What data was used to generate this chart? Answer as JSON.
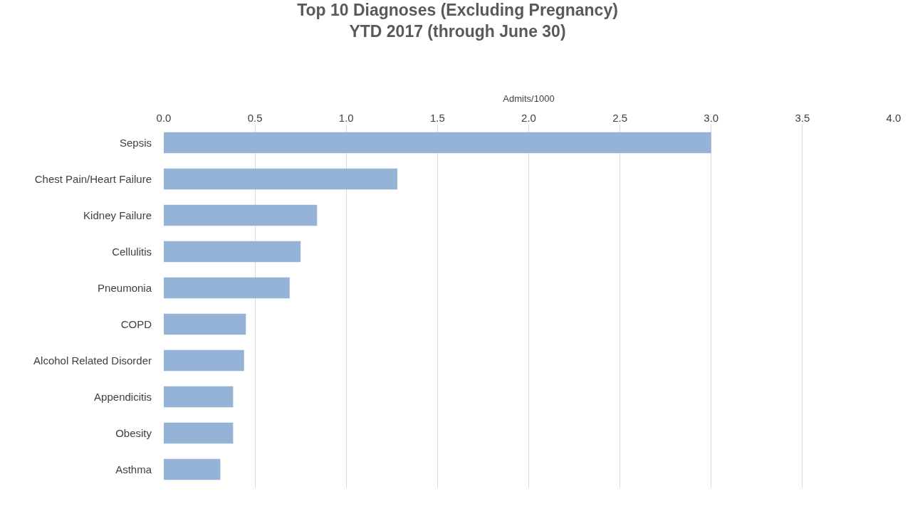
{
  "chart_data": {
    "type": "bar",
    "orientation": "horizontal",
    "title": "Top 10 Diagnoses (Excluding Pregnancy)\nYTD 2017 (through June 30)",
    "xlabel": "Admits/1000",
    "categories": [
      "Sepsis",
      "Chest Pain/Heart Failure",
      "Kidney Failure",
      "Cellulitis",
      "Pneumonia",
      "COPD",
      "Alcohol Related Disorder",
      "Appendicitis",
      "Obesity",
      "Asthma"
    ],
    "values": [
      3.0,
      1.28,
      0.84,
      0.75,
      0.69,
      0.45,
      0.44,
      0.38,
      0.38,
      0.31
    ],
    "color": "#95b3d7",
    "xlim": [
      0,
      4.0
    ],
    "xticks": [
      {
        "value": 0,
        "label": "0.0"
      },
      0.5,
      {
        "value": 1,
        "label": "1.0"
      },
      1.5,
      {
        "value": 2,
        "label": "2.0"
      },
      2.5,
      {
        "value": 3,
        "label": "3.0"
      },
      3.5,
      {
        "value": 4,
        "label": "4.0"
      }
    ],
    "grid": "x"
  }
}
